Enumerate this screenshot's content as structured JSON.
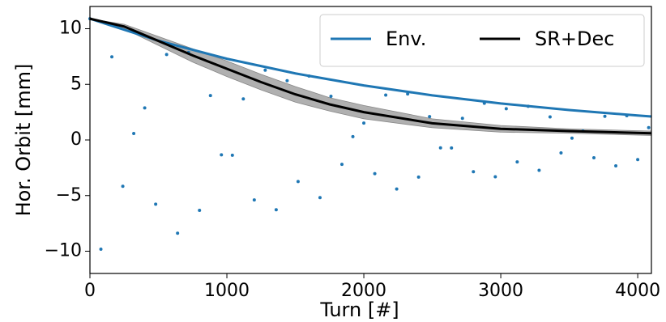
{
  "chart_data": {
    "type": "scatter",
    "xlabel": "Turn [#]",
    "ylabel": "Hor. Orbit [mm]",
    "xlim": [
      0,
      4100
    ],
    "ylim": [
      -12,
      12
    ],
    "xticks": [
      0,
      1000,
      2000,
      3000,
      4000
    ],
    "yticks": [
      {
        "value": -10,
        "label": "−10"
      },
      {
        "value": -5,
        "label": "−5"
      },
      0,
      5,
      10
    ],
    "legend": "upper right",
    "scatter": {
      "color": "#1f77b4",
      "x": [
        0,
        80,
        160,
        240,
        320,
        400,
        480,
        560,
        640,
        720,
        800,
        880,
        960,
        1040,
        1120,
        1200,
        1280,
        1360,
        1440,
        1520,
        1600,
        1680,
        1760,
        1840,
        1920,
        2000,
        2080,
        2160,
        2240,
        2320,
        2400,
        2480,
        2560,
        2640,
        2720,
        2800,
        2880,
        2960,
        3040,
        3120,
        3200,
        3280,
        3360,
        3440,
        3520,
        3600,
        3680,
        3760,
        3840,
        3920,
        4000,
        4080
      ],
      "values": [
        10.9,
        -9.82,
        7.47,
        -4.16,
        0.58,
        2.88,
        -5.77,
        7.68,
        -8.38,
        7.86,
        -6.33,
        3.99,
        -1.34,
        -1.37,
        3.69,
        -5.39,
        6.27,
        -6.27,
        5.33,
        -3.74,
        5.75,
        -5.18,
        3.93,
        -2.19,
        0.3,
        1.52,
        -3.03,
        4.04,
        -4.41,
        4.14,
        -3.34,
        2.1,
        -0.71,
        -0.72,
        1.95,
        -2.85,
        3.3,
        -3.31,
        2.81,
        -1.97,
        3.03,
        -2.73,
        2.07,
        -1.16,
        0.16,
        0.8,
        -1.6,
        2.13,
        -2.33,
        2.18,
        -1.76,
        1.11
      ]
    },
    "band": {
      "color": "#b0b0b0",
      "x": [
        0,
        250,
        500,
        750,
        1000,
        1250,
        1500,
        1750,
        2000,
        2500,
        3000,
        3500,
        4100
      ],
      "upper": [
        10.9,
        10.4,
        9.3,
        8.2,
        7.1,
        5.9,
        4.8,
        3.8,
        3.1,
        1.9,
        1.3,
        1.0,
        0.8
      ],
      "lower": [
        10.9,
        10.0,
        8.5,
        7.0,
        5.7,
        4.5,
        3.4,
        2.6,
        1.9,
        1.1,
        0.7,
        0.6,
        0.4
      ]
    },
    "series": [
      {
        "name": "Env.",
        "color": "#1f77b4",
        "x": [
          0,
          500,
          1000,
          1500,
          2000,
          2500,
          3000,
          3500,
          4000,
          4100
        ],
        "values": [
          10.9,
          8.92,
          7.3,
          5.98,
          4.9,
          4.01,
          3.28,
          2.69,
          2.2,
          2.11
        ]
      },
      {
        "name": "SR+Dec",
        "color": "#000000",
        "x": [
          0,
          250,
          500,
          750,
          1000,
          1250,
          1500,
          1750,
          2000,
          2500,
          3000,
          3500,
          4100
        ],
        "values": [
          10.9,
          10.2,
          8.9,
          7.6,
          6.4,
          5.2,
          4.1,
          3.2,
          2.5,
          1.5,
          1.0,
          0.8,
          0.6
        ]
      }
    ]
  }
}
